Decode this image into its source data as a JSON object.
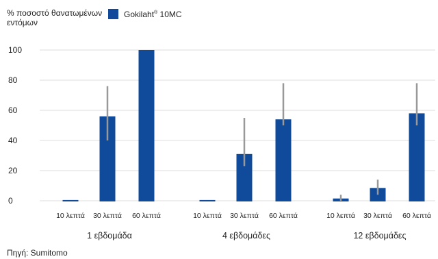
{
  "ylabel": "% ποσοστό θανατωμένων εντόμων",
  "legend": {
    "name": "Gokilaht",
    "mark": "®",
    "suffix": " 10MC",
    "color": "#0f4a9b"
  },
  "source": "Πηγή: Sumitomo",
  "chart_data": {
    "type": "bar",
    "ylim": [
      0,
      100
    ],
    "yticks": [
      0,
      20,
      40,
      60,
      80,
      100
    ],
    "grid": true,
    "legend_position": "top",
    "groups": [
      {
        "label": "1 εβδομάδα",
        "categories": [
          "10 λεπτά",
          "30 λεπτά",
          "60 λεπτά"
        ],
        "values": [
          0.5,
          56,
          100
        ],
        "error_low": [
          0.5,
          40,
          100
        ],
        "error_high": [
          0.5,
          76,
          100
        ]
      },
      {
        "label": "4 εβδομάδες",
        "categories": [
          "10 λεπτά",
          "30 λεπτά",
          "60 λεπτά"
        ],
        "values": [
          0.5,
          31,
          54
        ],
        "error_low": [
          0.5,
          23,
          50
        ],
        "error_high": [
          0.5,
          55,
          78
        ]
      },
      {
        "label": "12 εβδομάδες",
        "categories": [
          "10 λεπτά",
          "30 λεπτά",
          "60 λεπτά"
        ],
        "values": [
          1.5,
          8.5,
          58
        ],
        "error_low": [
          0,
          4,
          50
        ],
        "error_high": [
          4,
          14,
          78
        ]
      }
    ],
    "series": [
      {
        "name": "Gokilaht® 10MC"
      }
    ],
    "bar_color": "#0f4a9b",
    "error_color": "#999999"
  }
}
